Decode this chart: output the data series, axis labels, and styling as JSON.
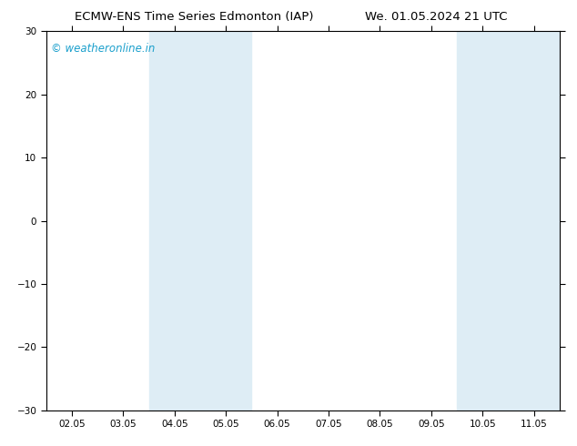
{
  "title_left": "ECMW-ENS Time Series Edmonton (IAP)",
  "title_right": "We. 01.05.2024 21 UTC",
  "title_fontsize": 9.5,
  "watermark": "© weatheronline.in",
  "watermark_color": "#1a9fcc",
  "watermark_fontsize": 8.5,
  "ylim": [
    -30,
    30
  ],
  "yticks": [
    -30,
    -20,
    -10,
    0,
    10,
    20,
    30
  ],
  "xtick_labels": [
    "02.05",
    "03.05",
    "04.05",
    "05.05",
    "06.05",
    "07.05",
    "08.05",
    "09.05",
    "10.05",
    "11.05"
  ],
  "xtick_positions": [
    0,
    1,
    2,
    3,
    4,
    5,
    6,
    7,
    8,
    9
  ],
  "xlim": [
    -0.5,
    9.5
  ],
  "shaded_bands": [
    {
      "xmin": 1.5,
      "xmax": 3.5,
      "color": "#deedf5"
    },
    {
      "xmin": 7.5,
      "xmax": 9.5,
      "color": "#deedf5"
    }
  ],
  "background_color": "#ffffff",
  "spine_color": "#000000",
  "tick_color": "#000000",
  "tick_labelsize": 7.5
}
